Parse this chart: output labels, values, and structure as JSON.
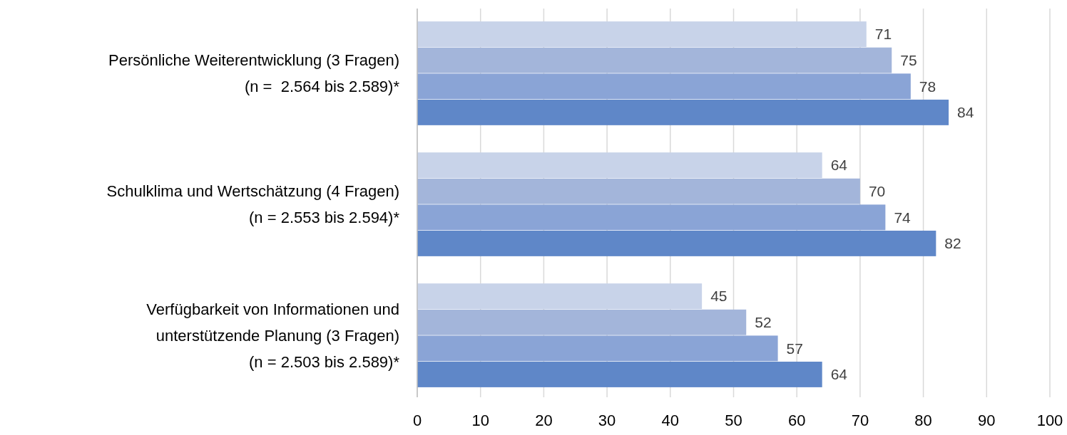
{
  "chart_data": {
    "type": "bar",
    "orientation": "horizontal",
    "categories": [
      "Persönliche Weiterentwicklung (3 Fragen)\n(n =  2.564 bis 2.589)*",
      "Schulklima und Wertschätzung (4 Fragen)\n(n = 2.553 bis 2.594)*",
      "Verfügbarkeit von Informationen und\nunterstützende Planung (3 Fragen)\n(n = 2.503 bis 2.589)*"
    ],
    "series": [
      {
        "color": "#c8d3e9",
        "values": [
          71,
          64,
          45
        ]
      },
      {
        "color": "#a3b5da",
        "values": [
          75,
          70,
          52
        ]
      },
      {
        "color": "#8aa4d6",
        "values": [
          78,
          74,
          57
        ]
      },
      {
        "color": "#5f87c8",
        "values": [
          84,
          82,
          64
        ]
      }
    ],
    "xlim": [
      0,
      100
    ],
    "xticks": [
      0,
      10,
      20,
      30,
      40,
      50,
      60,
      70,
      80,
      90,
      100
    ],
    "grid": "x",
    "data_labels": true
  }
}
